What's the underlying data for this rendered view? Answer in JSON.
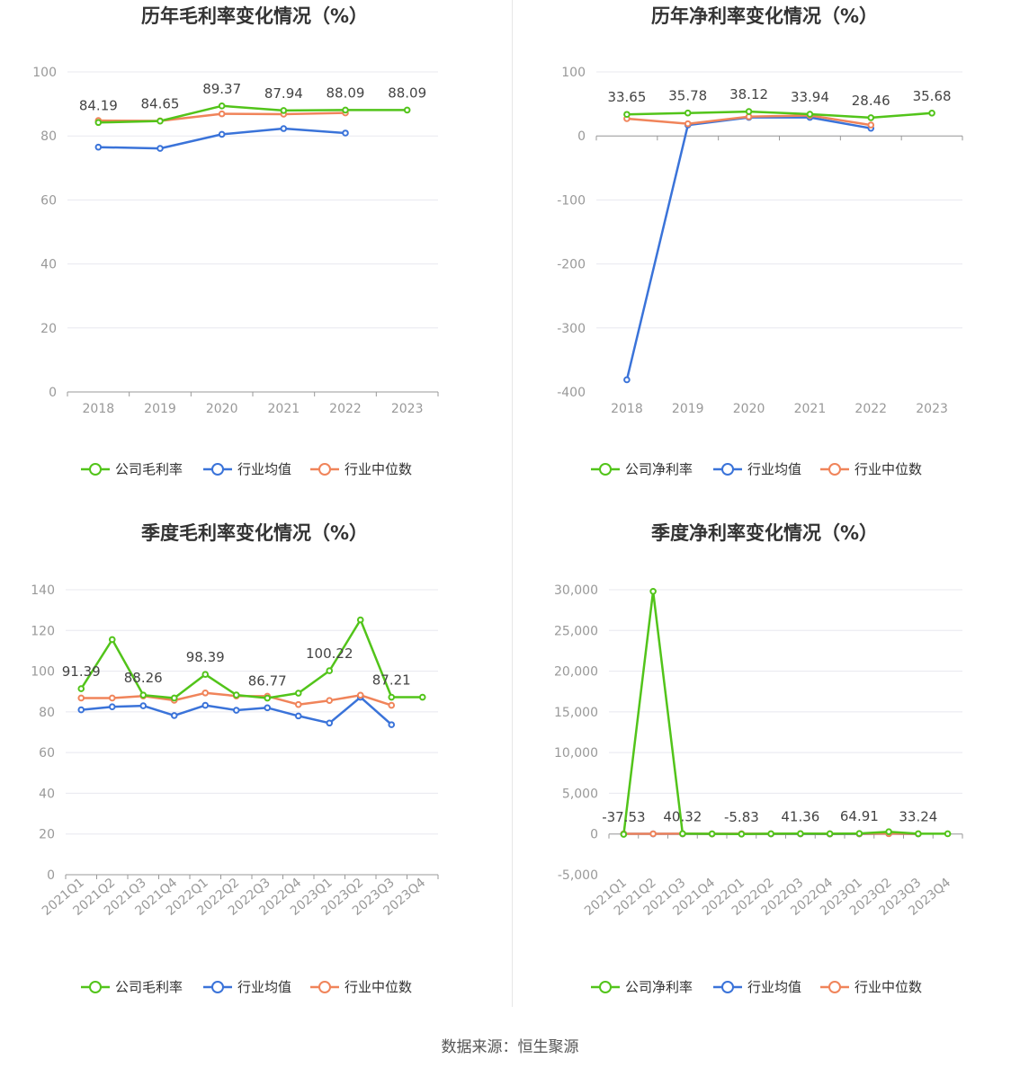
{
  "source": "数据来源：恒生聚源",
  "colors": {
    "company": "#52c41a",
    "avg": "#3a73d9",
    "median": "#f0845a",
    "grid": "#e8e8ef",
    "axis": "#999999"
  },
  "chart_data": [
    {
      "type": "line",
      "title": "历年毛利率变化情况（%）",
      "categories": [
        "2018",
        "2019",
        "2020",
        "2021",
        "2022",
        "2023"
      ],
      "ylim": [
        0,
        100
      ],
      "yticks": [
        0,
        20,
        40,
        60,
        80,
        100
      ],
      "ytick_labels": [
        "0",
        "20",
        "40",
        "60",
        "80",
        "100"
      ],
      "grid": true,
      "legend": "bottom",
      "series": [
        {
          "name": "公司毛利率",
          "color": "#52c41a",
          "values": [
            84.19,
            84.65,
            89.37,
            87.94,
            88.09,
            88.09
          ]
        },
        {
          "name": "行业均值",
          "color": "#3a73d9",
          "values": [
            76.5,
            76.1,
            80.5,
            82.3,
            80.9,
            null
          ]
        },
        {
          "name": "行业中位数",
          "color": "#f0845a",
          "values": [
            84.8,
            84.7,
            86.9,
            86.8,
            87.2,
            null
          ]
        }
      ],
      "data_labels": [
        {
          "index": 0,
          "text": "84.19",
          "value": 84.19
        },
        {
          "index": 1,
          "text": "84.65",
          "value": 84.65
        },
        {
          "index": 2,
          "text": "89.37",
          "value": 89.37
        },
        {
          "index": 3,
          "text": "87.94",
          "value": 87.94
        },
        {
          "index": 4,
          "text": "88.09",
          "value": 88.09
        },
        {
          "index": 5,
          "text": "88.09",
          "value": 88.09
        }
      ]
    },
    {
      "type": "line",
      "title": "历年净利率变化情况（%）",
      "categories": [
        "2018",
        "2019",
        "2020",
        "2021",
        "2022",
        "2023"
      ],
      "ylim": [
        -400,
        100
      ],
      "yticks": [
        -400,
        -300,
        -200,
        -100,
        0,
        100
      ],
      "ytick_labels": [
        "-400",
        "-300",
        "-200",
        "-100",
        "0",
        "100"
      ],
      "grid": true,
      "legend": "bottom",
      "series": [
        {
          "name": "公司净利率",
          "color": "#52c41a",
          "values": [
            33.65,
            35.78,
            38.12,
            33.94,
            28.46,
            35.68
          ]
        },
        {
          "name": "行业均值",
          "color": "#3a73d9",
          "values": [
            -381,
            17,
            29,
            29,
            12,
            null
          ]
        },
        {
          "name": "行业中位数",
          "color": "#f0845a",
          "values": [
            27,
            19,
            30,
            32,
            17,
            null
          ]
        }
      ],
      "data_labels": [
        {
          "index": 0,
          "text": "33.65",
          "value": 33.65
        },
        {
          "index": 1,
          "text": "35.78",
          "value": 35.78
        },
        {
          "index": 2,
          "text": "38.12",
          "value": 38.12
        },
        {
          "index": 3,
          "text": "33.94",
          "value": 33.94
        },
        {
          "index": 4,
          "text": "28.46",
          "value": 28.46
        },
        {
          "index": 5,
          "text": "35.68",
          "value": 35.68
        }
      ]
    },
    {
      "type": "line",
      "title": "季度毛利率变化情况（%）",
      "categories": [
        "2021Q1",
        "2021Q2",
        "2021Q3",
        "2021Q4",
        "2022Q1",
        "2022Q2",
        "2022Q3",
        "2022Q4",
        "2023Q1",
        "2023Q2",
        "2023Q3",
        "2023Q4"
      ],
      "ylim": [
        0,
        140
      ],
      "yticks": [
        0,
        20,
        40,
        60,
        80,
        100,
        120,
        140
      ],
      "ytick_labels": [
        "0",
        "20",
        "40",
        "60",
        "80",
        "100",
        "120",
        "140"
      ],
      "grid": true,
      "legend": "bottom",
      "series": [
        {
          "name": "公司毛利率",
          "color": "#52c41a",
          "values": [
            91.39,
            115.5,
            88.26,
            86.8,
            98.39,
            88.3,
            86.77,
            89.2,
            100.22,
            125.2,
            87.21,
            87.21
          ]
        },
        {
          "name": "行业均值",
          "color": "#3a73d9",
          "values": [
            81,
            82.5,
            83,
            78.2,
            83.2,
            80.8,
            82,
            78,
            74.5,
            87.2,
            73.7,
            null
          ]
        },
        {
          "name": "行业中位数",
          "color": "#f0845a",
          "values": [
            86.8,
            86.8,
            87.8,
            85.7,
            89.3,
            87.8,
            87.7,
            83.6,
            85.6,
            88.2,
            83.2,
            null
          ]
        }
      ],
      "data_labels": [
        {
          "index": 0,
          "text": "91.39",
          "value": 91.39
        },
        {
          "index": 2,
          "text": "88.26",
          "value": 88.26
        },
        {
          "index": 4,
          "text": "98.39",
          "value": 98.39
        },
        {
          "index": 6,
          "text": "86.77",
          "value": 86.77
        },
        {
          "index": 8,
          "text": "100.22",
          "value": 100.22
        },
        {
          "index": 10,
          "text": "87.21",
          "value": 87.21
        }
      ]
    },
    {
      "type": "line",
      "title": "季度净利率变化情况（%）",
      "categories": [
        "2021Q1",
        "2021Q2",
        "2021Q3",
        "2021Q4",
        "2022Q1",
        "2022Q2",
        "2022Q3",
        "2022Q4",
        "2023Q1",
        "2023Q2",
        "2023Q3",
        "2023Q4"
      ],
      "ylim": [
        -5000,
        30000
      ],
      "yticks": [
        -5000,
        0,
        5000,
        10000,
        15000,
        20000,
        25000,
        30000
      ],
      "ytick_labels": [
        "-5,000",
        "0",
        "5,000",
        "10,000",
        "15,000",
        "20,000",
        "25,000",
        "30,000"
      ],
      "grid": true,
      "legend": "bottom",
      "series": [
        {
          "name": "公司净利率",
          "color": "#52c41a",
          "values": [
            -37.53,
            29800,
            40.32,
            20,
            -5.83,
            30,
            41.36,
            35,
            64.91,
            280,
            33.24,
            30
          ]
        },
        {
          "name": "行业均值",
          "color": "#3a73d9",
          "values": [
            20,
            20,
            20,
            10,
            20,
            10,
            15,
            5,
            15,
            40,
            10,
            null
          ]
        },
        {
          "name": "行业中位数",
          "color": "#f0845a",
          "values": [
            25,
            25,
            30,
            20,
            30,
            25,
            30,
            20,
            30,
            45,
            25,
            null
          ]
        }
      ],
      "data_labels": [
        {
          "index": 0,
          "text": "-37.53",
          "value": -37.53
        },
        {
          "index": 2,
          "text": "40.32",
          "value": 40.32
        },
        {
          "index": 4,
          "text": "-5.83",
          "value": -5.83
        },
        {
          "index": 6,
          "text": "41.36",
          "value": 41.36
        },
        {
          "index": 8,
          "text": "64.91",
          "value": 64.91
        },
        {
          "index": 10,
          "text": "33.24",
          "value": 33.24
        }
      ]
    }
  ]
}
